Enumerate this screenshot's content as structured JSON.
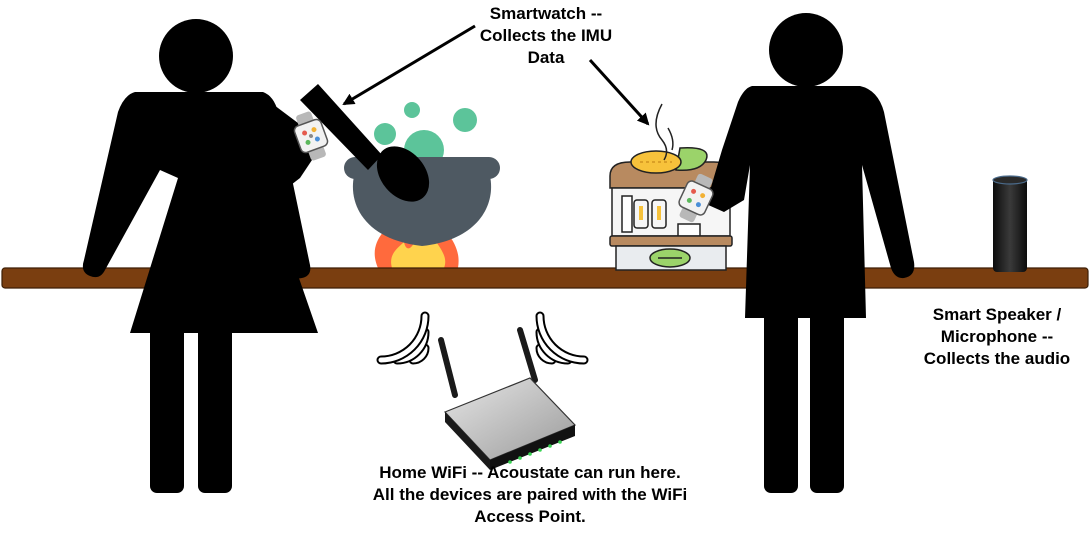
{
  "labels": {
    "smartwatch": [
      "Smartwatch --",
      "Collects the IMU",
      "Data"
    ],
    "speaker": [
      "Smart Speaker /",
      "Microphone --",
      "Collects the audio"
    ],
    "router": [
      "Home WiFi -- Acoustate can run here.",
      "All the devices are paired with the WiFi",
      "Access Point."
    ]
  },
  "icons": {
    "person_left": "person-silhouette-icon",
    "person_right": "person-silhouette-icon",
    "pot": "cooking-pot-icon",
    "spoon": "spoon-icon",
    "flame": "fire-icon",
    "grill": "corn-grill-icon",
    "watch": "smartwatch-icon",
    "speaker": "smart-speaker-icon",
    "router": "wifi-router-icon",
    "wifi": "wifi-signal-icon"
  },
  "colors": {
    "figure": "#000000",
    "counter": "#7a3e10",
    "pot": "#4e5962",
    "steam": "#5cc49a",
    "flame_outer": "#ff6a3d",
    "flame_inner": "#ffd34d",
    "grill_roof": "#b88a60",
    "corn": "#f7c23b",
    "leaf": "#9bd36a"
  }
}
